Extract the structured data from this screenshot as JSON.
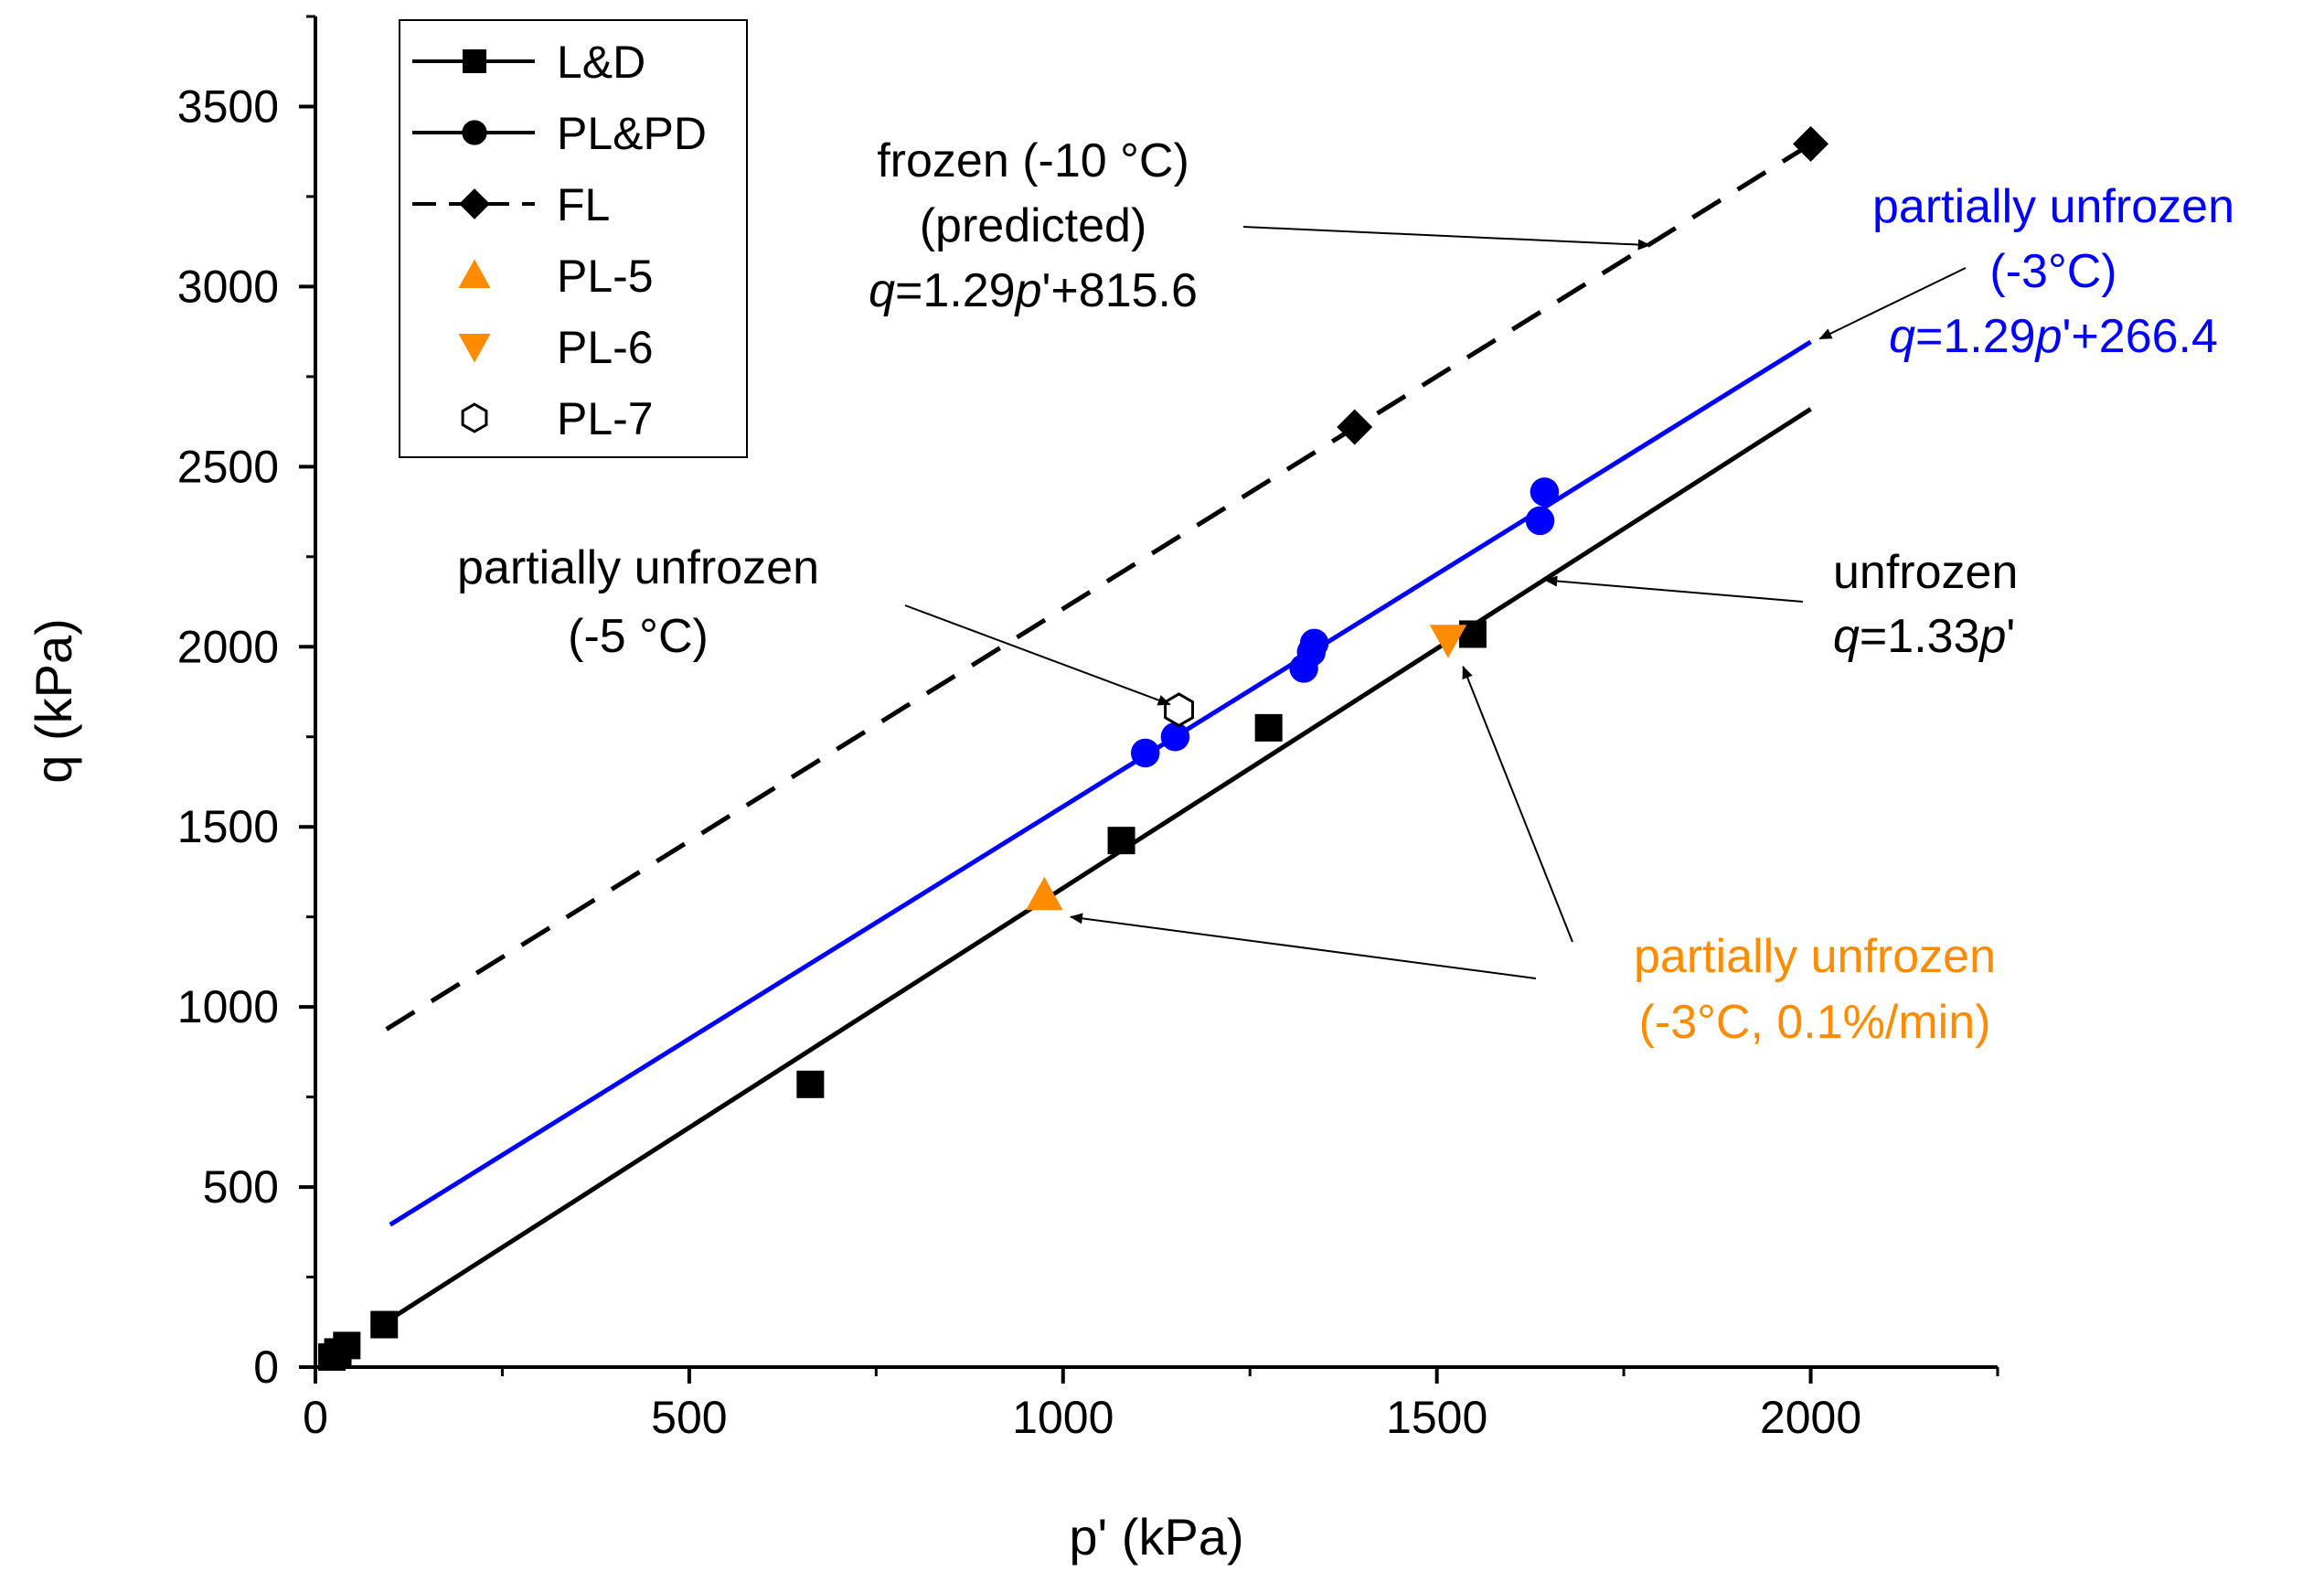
{
  "chart_data": {
    "type": "scatter",
    "xlabel": "p' (kPa)",
    "ylabel": "q (kPa)",
    "xlim": [
      0,
      2250
    ],
    "ylim": [
      0,
      3750
    ],
    "xticks": [
      0,
      500,
      1000,
      1500,
      2000
    ],
    "yticks": [
      0,
      500,
      1000,
      1500,
      2000,
      2500,
      3000,
      3500
    ],
    "xticks_minor": [
      250,
      750,
      1250,
      1750,
      2250
    ],
    "yticks_minor": [
      250,
      750,
      1250,
      1750,
      2250,
      2750,
      3250,
      3750
    ],
    "series": [
      {
        "name": "L&D",
        "marker": "square",
        "color": "#000000",
        "line": "solid",
        "points": [
          [
            22,
            28
          ],
          [
            30,
            42
          ],
          [
            42,
            60
          ],
          [
            92,
            118
          ],
          [
            662,
            785
          ],
          [
            1078,
            1462
          ],
          [
            1275,
            1775
          ],
          [
            1548,
            2035
          ]
        ]
      },
      {
        "name": "PL&PD",
        "marker": "circle",
        "color": "#0000ff",
        "line": "solid",
        "points": [
          [
            1110,
            1705
          ],
          [
            1150,
            1750
          ],
          [
            1322,
            1940
          ],
          [
            1332,
            1985
          ],
          [
            1336,
            2010
          ],
          [
            1638,
            2350
          ],
          [
            1644,
            2430
          ]
        ]
      },
      {
        "name": "FL",
        "marker": "diamond",
        "color": "#000000",
        "line": "dashed",
        "points": [
          [
            1390,
            2610
          ],
          [
            2000,
            3396
          ]
        ]
      },
      {
        "name": "PL-5",
        "marker": "triangle-up",
        "color": "#ff8c00",
        "line": "none",
        "points": [
          [
            975,
            1310
          ]
        ]
      },
      {
        "name": "PL-6",
        "marker": "triangle-down",
        "color": "#ff8c00",
        "line": "none",
        "points": [
          [
            1515,
            2020
          ]
        ]
      },
      {
        "name": "PL-7",
        "marker": "hexagon-open",
        "color": "#000000",
        "line": "none",
        "points": [
          [
            1155,
            1825
          ]
        ]
      }
    ],
    "fit_lines": [
      {
        "name": "frozen",
        "slope": 1.29,
        "intercept": 815.6,
        "x_range": [
          95,
          2000
        ],
        "color": "#000000",
        "style": "dashed"
      },
      {
        "name": "partially unfrozen -3",
        "slope": 1.29,
        "intercept": 266.4,
        "x_range": [
          100,
          2000
        ],
        "color": "#0000ff",
        "style": "solid"
      },
      {
        "name": "unfrozen",
        "slope": 1.33,
        "intercept": 0,
        "x_range": [
          95,
          2000
        ],
        "color": "#000000",
        "style": "solid"
      }
    ],
    "legend": {
      "placement": "top-left",
      "entries": [
        "L&D",
        "PL&PD",
        "FL",
        "PL-5",
        "PL-6",
        "PL-7"
      ]
    },
    "annotations": [
      {
        "id": "frozen",
        "color": "#000000",
        "lines": [
          [
            "frozen (-10 °C)"
          ],
          [
            "(predicted)"
          ],
          [
            {
              "t": "q",
              "i": true
            },
            {
              "t": "=1.29"
            },
            {
              "t": "p",
              "i": true
            },
            {
              "t": "'+815.6"
            }
          ]
        ],
        "arrow_to": [
          1785,
          3115
        ]
      },
      {
        "id": "pu3",
        "color": "#0000ff",
        "lines": [
          [
            "partially unfrozen"
          ],
          [
            "(-3°C)"
          ],
          [
            {
              "t": "q",
              "i": true
            },
            {
              "t": "=1.29"
            },
            {
              "t": "p",
              "i": true
            },
            {
              "t": "'+266.4"
            }
          ]
        ],
        "arrow_to": [
          2012,
          2855
        ]
      },
      {
        "id": "pu5",
        "color": "#000000",
        "lines": [
          [
            "partially unfrozen"
          ],
          [
            "(-5 °C)"
          ]
        ],
        "arrow_to": [
          1143,
          1840
        ]
      },
      {
        "id": "unfrozen",
        "color": "#000000",
        "lines": [
          [
            "unfrozen"
          ],
          [
            {
              "t": "q",
              "i": true
            },
            {
              "t": "=1.33"
            },
            {
              "t": "p",
              "i": true
            },
            {
              "t": "'"
            }
          ]
        ],
        "arrow_to": [
          1645,
          2185
        ]
      },
      {
        "id": "pu3slow",
        "color": "#ff8c00",
        "lines": [
          [
            "partially unfrozen"
          ],
          [
            "(-3°C, 0.1%/min)"
          ]
        ],
        "arrows_to": [
          [
            1010,
            1250
          ],
          [
            1535,
            1945
          ]
        ]
      }
    ]
  }
}
